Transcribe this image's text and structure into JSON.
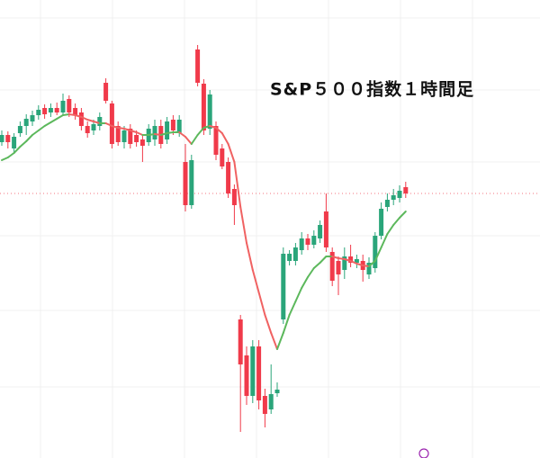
{
  "chart_data": {
    "type": "candlestick",
    "title": "S&P５００指数１時間足",
    "ylim": [
      0,
      509
    ],
    "up_color": "#2aa57a",
    "down_color": "#f03a4a",
    "last_price_line": true,
    "open": [
      351,
      359,
      344,
      361,
      369,
      374,
      381,
      389,
      384,
      389,
      384,
      399,
      389,
      384,
      369,
      364,
      369,
      417,
      394,
      369,
      351,
      366,
      359,
      354,
      351,
      354,
      369,
      354,
      376,
      361,
      329,
      281,
      454,
      416,
      366,
      369,
      344,
      329,
      299,
      154,
      114,
      69,
      124,
      69,
      54,
      72,
      154,
      219,
      219,
      231,
      244,
      237,
      244,
      274,
      229,
      219,
      209,
      224,
      217,
      219,
      204,
      211,
      247,
      279,
      287,
      289,
      301
    ],
    "close": [
      359,
      351,
      357,
      369,
      377,
      381,
      387,
      382,
      389,
      384,
      397,
      384,
      381,
      369,
      361,
      371,
      379,
      397,
      349,
      351,
      364,
      349,
      351,
      347,
      366,
      369,
      349,
      374,
      364,
      376,
      281,
      331,
      417,
      364,
      404,
      337,
      324,
      294,
      281,
      104,
      69,
      124,
      64,
      49,
      71,
      76,
      227,
      227,
      234,
      244,
      237,
      247,
      259,
      234,
      197,
      204,
      224,
      217,
      221,
      209,
      217,
      247,
      277,
      287,
      292,
      297,
      294
    ],
    "high": [
      364,
      363,
      361,
      374,
      382,
      386,
      392,
      393,
      394,
      395,
      405,
      403,
      394,
      389,
      374,
      376,
      384,
      422,
      397,
      374,
      369,
      371,
      364,
      359,
      371,
      376,
      376,
      379,
      381,
      381,
      349,
      337,
      459,
      421,
      409,
      374,
      349,
      334,
      304,
      159,
      124,
      131,
      131,
      77,
      104,
      84,
      234,
      231,
      239,
      251,
      249,
      253,
      264,
      294,
      234,
      224,
      234,
      237,
      226,
      226,
      223,
      251,
      284,
      294,
      299,
      303,
      307
    ],
    "low": [
      347,
      344,
      339,
      357,
      359,
      369,
      376,
      377,
      379,
      381,
      381,
      379,
      376,
      364,
      356,
      359,
      364,
      394,
      344,
      347,
      344,
      344,
      346,
      329,
      347,
      347,
      344,
      349,
      359,
      357,
      274,
      277,
      413,
      359,
      359,
      331,
      321,
      289,
      259,
      29,
      59,
      61,
      54,
      34,
      49,
      68,
      149,
      214,
      214,
      226,
      231,
      233,
      239,
      229,
      191,
      181,
      199,
      212,
      211,
      196,
      199,
      206,
      243,
      274,
      281,
      284,
      289
    ],
    "moving_average": {
      "up_color": "#5cb85c",
      "down_color": "#f06262",
      "values": [
        331,
        334,
        339,
        346,
        352,
        359,
        364,
        369,
        373,
        377,
        381,
        382,
        381,
        379,
        376,
        374,
        372,
        372,
        369,
        367,
        366,
        364,
        362,
        359,
        359,
        360,
        359,
        361,
        362,
        362,
        357,
        349,
        359,
        367,
        369,
        367,
        361,
        349,
        329,
        279,
        239,
        209,
        184,
        159,
        139,
        121,
        139,
        159,
        174,
        189,
        201,
        211,
        217,
        224,
        224,
        222,
        221,
        219,
        216,
        214,
        213,
        219,
        234,
        249,
        259,
        267,
        274
      ]
    }
  }
}
